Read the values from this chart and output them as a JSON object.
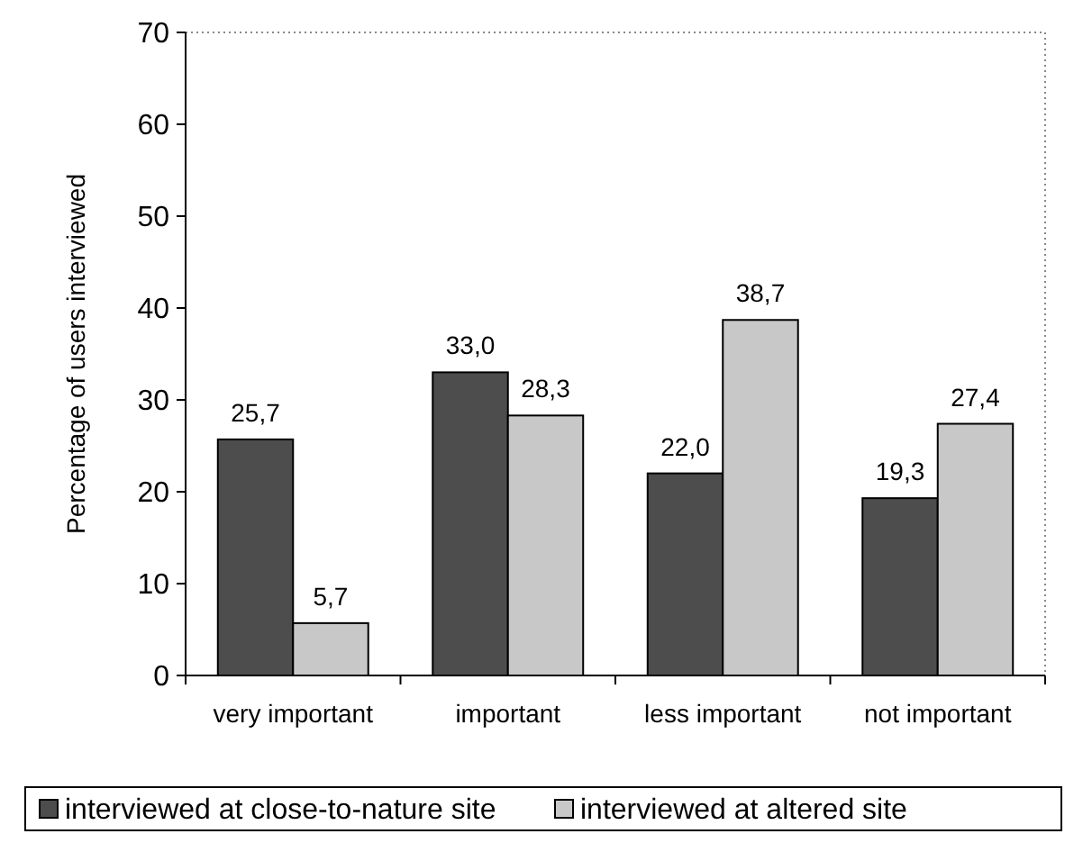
{
  "chart_data": {
    "type": "bar",
    "ylabel": "Percentage of users interviewed",
    "categories": [
      "very important",
      "important",
      "less important",
      "not important"
    ],
    "series": [
      {
        "name": "interviewed at close-to-nature site",
        "color": "#4d4d4d",
        "values": [
          25.7,
          33.0,
          22.0,
          19.3
        ],
        "value_labels": [
          "25,7",
          "33,0",
          "22,0",
          "19,3"
        ]
      },
      {
        "name": "interviewed at altered site",
        "color": "#c8c8c8",
        "values": [
          5.7,
          28.3,
          38.7,
          27.4
        ],
        "value_labels": [
          "5,7",
          "28,3",
          "38,7",
          "27,4"
        ]
      }
    ],
    "ylim": [
      0,
      70
    ],
    "yticks": [
      0,
      10,
      20,
      30,
      40,
      50,
      60,
      70
    ],
    "grid": false,
    "legend": "bottom"
  }
}
